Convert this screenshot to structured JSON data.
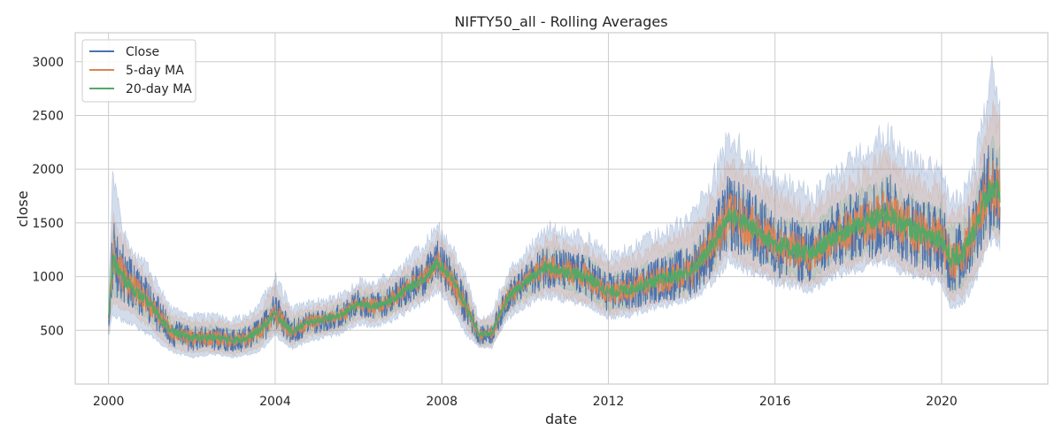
{
  "chart_data": {
    "type": "line",
    "title": "NIFTY50_all - Rolling Averages",
    "xlabel": "date",
    "ylabel": "close",
    "xlim": [
      1999.2,
      2022.55
    ],
    "ylim": [
      0,
      3270
    ],
    "x_ticks": [
      2000,
      2004,
      2008,
      2012,
      2016,
      2020
    ],
    "x_tick_labels": [
      "2000",
      "2004",
      "2008",
      "2012",
      "2016",
      "2020"
    ],
    "y_ticks": [
      500,
      1000,
      1500,
      2000,
      2500,
      3000
    ],
    "y_tick_labels": [
      "500",
      "1000",
      "1500",
      "2000",
      "2500",
      "3000"
    ],
    "grid": true,
    "legend": {
      "position": "top-left"
    },
    "x": [
      2000.0,
      2000.1,
      2000.3,
      2000.6,
      2001.0,
      2001.5,
      2002.0,
      2002.5,
      2003.0,
      2003.3,
      2003.6,
      2004.0,
      2004.4,
      2004.8,
      2005.2,
      2005.6,
      2006.0,
      2006.4,
      2006.8,
      2007.2,
      2007.6,
      2007.9,
      2008.2,
      2008.6,
      2008.9,
      2009.2,
      2009.6,
      2010.0,
      2010.5,
      2011.0,
      2011.5,
      2012.0,
      2012.5,
      2013.0,
      2013.5,
      2014.0,
      2014.5,
      2014.9,
      2015.3,
      2015.7,
      2016.0,
      2016.4,
      2016.9,
      2017.3,
      2017.8,
      2018.2,
      2018.7,
      2019.0,
      2019.5,
      2020.0,
      2020.2,
      2020.5,
      2020.8,
      2021.0,
      2021.2,
      2021.4
    ],
    "series": [
      {
        "name": "Close",
        "color": "#4c72b0",
        "values": [
          600,
          1200,
          1050,
          900,
          750,
          480,
          420,
          430,
          400,
          420,
          480,
          680,
          480,
          570,
          600,
          640,
          750,
          720,
          790,
          900,
          1000,
          1150,
          1000,
          700,
          450,
          470,
          820,
          950,
          1100,
          1050,
          1000,
          850,
          880,
          950,
          1000,
          1050,
          1300,
          1600,
          1500,
          1400,
          1300,
          1250,
          1200,
          1350,
          1450,
          1500,
          1600,
          1500,
          1400,
          1350,
          1150,
          1200,
          1450,
          1700,
          1850,
          1750
        ],
        "band_upper": [
          750,
          1950,
          1500,
          1250,
          1050,
          700,
          630,
          640,
          600,
          630,
          720,
          1000,
          700,
          750,
          780,
          820,
          950,
          930,
          1020,
          1150,
          1300,
          1450,
          1300,
          980,
          600,
          650,
          1050,
          1200,
          1450,
          1400,
          1350,
          1200,
          1250,
          1350,
          1450,
          1550,
          1900,
          2300,
          2150,
          2000,
          1900,
          1850,
          1750,
          1900,
          2050,
          2200,
          2350,
          2150,
          2050,
          1950,
          1700,
          1750,
          2050,
          2450,
          2900,
          2700
        ],
        "band_lower": [
          450,
          650,
          600,
          550,
          450,
          300,
          250,
          280,
          250,
          270,
          300,
          450,
          330,
          400,
          440,
          470,
          560,
          540,
          590,
          680,
          760,
          880,
          720,
          460,
          340,
          340,
          620,
          720,
          820,
          780,
          720,
          620,
          640,
          700,
          740,
          780,
          950,
          1150,
          1050,
          1000,
          950,
          900,
          880,
          980,
          1050,
          1100,
          1150,
          1050,
          980,
          950,
          700,
          750,
          950,
          1150,
          1350,
          1300
        ]
      },
      {
        "name": "5-day MA",
        "color": "#dd8452",
        "values": [
          610,
          1180,
          1040,
          895,
          745,
          485,
          425,
          432,
          405,
          422,
          485,
          670,
          485,
          572,
          602,
          642,
          748,
          722,
          788,
          898,
          995,
          1140,
          1000,
          705,
          455,
          472,
          815,
          948,
          1095,
          1048,
          998,
          852,
          880,
          948,
          998,
          1048,
          1295,
          1590,
          1495,
          1398,
          1300,
          1252,
          1202,
          1348,
          1448,
          1498,
          1595,
          1498,
          1402,
          1352,
          1160,
          1205,
          1445,
          1695,
          1840,
          1750
        ],
        "band_upper": [
          700,
          1600,
          1380,
          1150,
          960,
          640,
          580,
          590,
          560,
          580,
          660,
          900,
          640,
          700,
          730,
          770,
          890,
          870,
          950,
          1070,
          1200,
          1350,
          1200,
          900,
          560,
          600,
          980,
          1120,
          1340,
          1300,
          1250,
          1100,
          1140,
          1230,
          1320,
          1400,
          1700,
          2050,
          1950,
          1820,
          1720,
          1680,
          1600,
          1740,
          1870,
          1980,
          2100,
          1950,
          1860,
          1780,
          1550,
          1600,
          1860,
          2200,
          2550,
          2400
        ],
        "band_lower": [
          500,
          780,
          700,
          640,
          530,
          340,
          290,
          300,
          280,
          300,
          340,
          500,
          360,
          440,
          470,
          510,
          610,
          580,
          640,
          730,
          810,
          940,
          780,
          520,
          360,
          360,
          660,
          770,
          870,
          820,
          770,
          660,
          690,
          750,
          790,
          830,
          1020,
          1240,
          1120,
          1060,
          1000,
          960,
          940,
          1040,
          1110,
          1160,
          1220,
          1120,
          1040,
          1010,
          780,
          820,
          1030,
          1220,
          1420,
          1380
        ]
      },
      {
        "name": "20-day MA",
        "color": "#55a868",
        "values": [
          620,
          1150,
          1020,
          880,
          740,
          490,
          430,
          435,
          410,
          425,
          490,
          650,
          490,
          575,
          605,
          645,
          745,
          725,
          785,
          895,
          990,
          1130,
          1010,
          710,
          460,
          475,
          810,
          945,
          1090,
          1045,
          995,
          855,
          880,
          945,
          995,
          1045,
          1290,
          1580,
          1490,
          1395,
          1300,
          1255,
          1205,
          1345,
          1445,
          1495,
          1590,
          1495,
          1405,
          1355,
          1170,
          1210,
          1440,
          1690,
          1830,
          1750
        ],
        "band_upper": [
          680,
          1400,
          1200,
          1000,
          850,
          580,
          520,
          530,
          500,
          520,
          590,
          780,
          580,
          650,
          680,
          720,
          830,
          810,
          880,
          990,
          1100,
          1250,
          1120,
          820,
          520,
          540,
          900,
          1040,
          1230,
          1190,
          1140,
          990,
          1020,
          1100,
          1170,
          1230,
          1500,
          1800,
          1720,
          1620,
          1540,
          1500,
          1440,
          1560,
          1680,
          1760,
          1860,
          1740,
          1660,
          1600,
          1420,
          1460,
          1680,
          1950,
          2200,
          2100
        ],
        "band_lower": [
          540,
          850,
          800,
          720,
          600,
          390,
          340,
          350,
          320,
          340,
          390,
          550,
          400,
          480,
          510,
          550,
          650,
          630,
          680,
          780,
          870,
          1000,
          880,
          580,
          390,
          400,
          700,
          820,
          940,
          890,
          840,
          710,
          740,
          800,
          830,
          870,
          1080,
          1350,
          1250,
          1170,
          1080,
          1030,
          990,
          1130,
          1200,
          1240,
          1320,
          1240,
          1150,
          1110,
          880,
          920,
          1180,
          1400,
          1500,
          1440
        ]
      }
    ]
  }
}
